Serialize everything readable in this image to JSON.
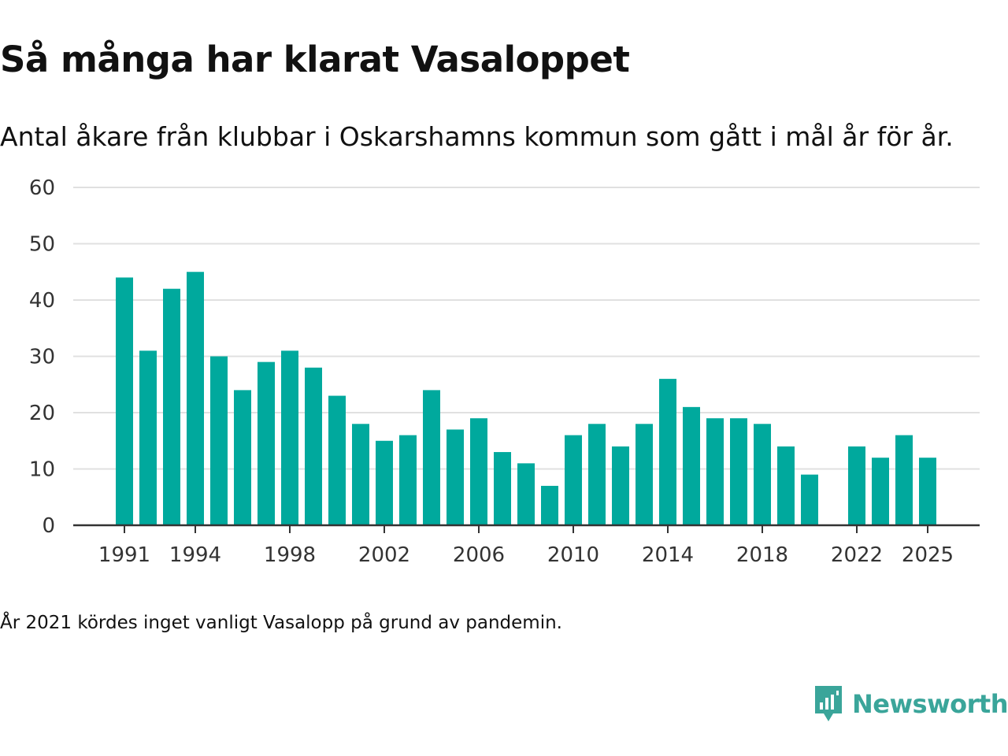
{
  "colors": {
    "bar": "#00a99d",
    "grid": "#e0e0e0",
    "axis": "#333333",
    "brand": "#3aa59a"
  },
  "chart_data": {
    "type": "bar",
    "title": "Så många har klarat Vasaloppet",
    "subtitle": "Antal åkare från klubbar i Oskarshamns kommun som gått i mål år för år.",
    "xlabel": "",
    "ylabel": "",
    "ylim": [
      0,
      60
    ],
    "yticks": [
      0,
      10,
      20,
      30,
      40,
      50,
      60
    ],
    "xtick_labels": [
      "1991",
      "1994",
      "1998",
      "2002",
      "2006",
      "2010",
      "2014",
      "2018",
      "2022",
      "2025"
    ],
    "categories": [
      "1991",
      "1992",
      "1993",
      "1994",
      "1995",
      "1996",
      "1997",
      "1998",
      "1999",
      "2000",
      "2001",
      "2002",
      "2003",
      "2004",
      "2005",
      "2006",
      "2007",
      "2008",
      "2009",
      "2010",
      "2011",
      "2012",
      "2013",
      "2014",
      "2015",
      "2016",
      "2017",
      "2018",
      "2019",
      "2020",
      "2021",
      "2022",
      "2023",
      "2024",
      "2025"
    ],
    "values": [
      44,
      31,
      42,
      45,
      30,
      24,
      29,
      31,
      28,
      23,
      18,
      15,
      16,
      24,
      17,
      19,
      13,
      11,
      7,
      16,
      18,
      14,
      18,
      26,
      21,
      19,
      19,
      18,
      14,
      9,
      null,
      14,
      12,
      16,
      12
    ],
    "grid": true
  },
  "footer": {
    "note": "År 2021 kördes inget vanligt Vasalopp på grund av pandemin.",
    "brand": "Newsworthy",
    "brand_icon": "newsworthy-logo-icon"
  }
}
